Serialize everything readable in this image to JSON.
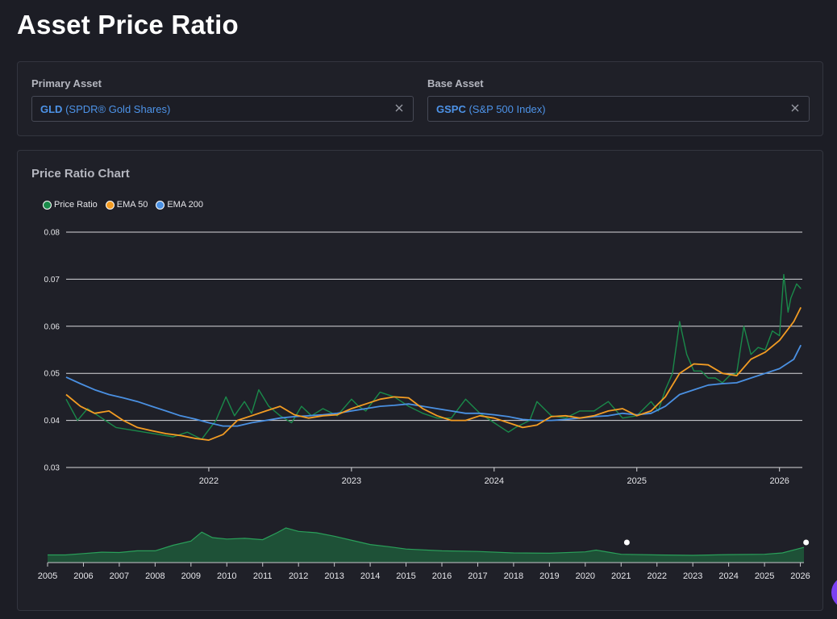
{
  "page": {
    "title": "Asset Price Ratio"
  },
  "selectors": {
    "primary": {
      "label": "Primary Asset",
      "symbol": "GLD",
      "name": "(SPDR® Gold Shares)"
    },
    "base": {
      "label": "Base Asset",
      "symbol": "GSPC",
      "name": "(S&P 500 Index)"
    }
  },
  "chart_card": {
    "title": "Price Ratio Chart"
  },
  "colors": {
    "price": "#1a8a4a",
    "ema50": "#f39c23",
    "ema200": "#4a90e2",
    "accent": "#4d93e8"
  },
  "chart_data": {
    "type": "line",
    "title": "",
    "y_ticks": [
      "0.03",
      "0.04",
      "0.05",
      "0.06",
      "0.07",
      "0.08"
    ],
    "ylim": [
      0.03,
      0.08
    ],
    "x_ticks": [
      "2022",
      "2023",
      "2024",
      "2025",
      "2026"
    ],
    "xlim": [
      2021.0,
      2026.16
    ],
    "grid": "horizontal",
    "legend_position": "top-left",
    "series": [
      {
        "name": "Price Ratio",
        "x": [
          2021.0,
          2021.08,
          2021.15,
          2021.25,
          2021.35,
          2021.45,
          2021.55,
          2021.65,
          2021.75,
          2021.85,
          2021.95,
          2022.05,
          2022.12,
          2022.18,
          2022.25,
          2022.3,
          2022.35,
          2022.42,
          2022.5,
          2022.58,
          2022.65,
          2022.72,
          2022.8,
          2022.9,
          2023.0,
          2023.05,
          2023.1,
          2023.2,
          2023.3,
          2023.35,
          2023.4,
          2023.5,
          2023.6,
          2023.7,
          2023.8,
          2023.9,
          2024.0,
          2024.1,
          2024.15,
          2024.25,
          2024.3,
          2024.4,
          2024.5,
          2024.6,
          2024.7,
          2024.8,
          2024.9,
          2025.0,
          2025.1,
          2025.15,
          2025.2,
          2025.25,
          2025.3,
          2025.35,
          2025.4,
          2025.45,
          2025.5,
          2025.55,
          2025.6,
          2025.65,
          2025.7,
          2025.75,
          2025.8,
          2025.85,
          2025.9,
          2025.95,
          2026.0,
          2026.03,
          2026.06,
          2026.08,
          2026.12,
          2026.15
        ],
        "values": [
          0.0445,
          0.04,
          0.0425,
          0.0405,
          0.0385,
          0.038,
          0.0375,
          0.037,
          0.0365,
          0.0375,
          0.036,
          0.04,
          0.045,
          0.041,
          0.044,
          0.0415,
          0.0465,
          0.043,
          0.041,
          0.0395,
          0.043,
          0.041,
          0.0425,
          0.041,
          0.0445,
          0.043,
          0.042,
          0.046,
          0.045,
          0.044,
          0.043,
          0.0415,
          0.0405,
          0.0405,
          0.0445,
          0.0415,
          0.0395,
          0.0375,
          0.0385,
          0.04,
          0.044,
          0.041,
          0.0405,
          0.042,
          0.042,
          0.044,
          0.0405,
          0.041,
          0.044,
          0.042,
          0.0465,
          0.05,
          0.061,
          0.054,
          0.0505,
          0.0505,
          0.049,
          0.049,
          0.048,
          0.0495,
          0.05,
          0.06,
          0.054,
          0.0555,
          0.055,
          0.059,
          0.058,
          0.071,
          0.063,
          0.066,
          0.069,
          0.068
        ]
      },
      {
        "name": "EMA 50",
        "x": [
          2021.0,
          2021.1,
          2021.2,
          2021.3,
          2021.4,
          2021.5,
          2021.6,
          2021.7,
          2021.8,
          2021.9,
          2022.0,
          2022.1,
          2022.2,
          2022.3,
          2022.4,
          2022.5,
          2022.6,
          2022.7,
          2022.8,
          2022.9,
          2023.0,
          2023.1,
          2023.2,
          2023.3,
          2023.4,
          2023.5,
          2023.6,
          2023.7,
          2023.8,
          2023.9,
          2024.0,
          2024.1,
          2024.2,
          2024.3,
          2024.4,
          2024.5,
          2024.6,
          2024.7,
          2024.8,
          2024.9,
          2025.0,
          2025.1,
          2025.2,
          2025.3,
          2025.4,
          2025.5,
          2025.6,
          2025.7,
          2025.8,
          2025.9,
          2026.0,
          2026.1,
          2026.15
        ],
        "values": [
          0.0455,
          0.043,
          0.0415,
          0.042,
          0.04,
          0.0385,
          0.0378,
          0.0372,
          0.0368,
          0.0362,
          0.0358,
          0.037,
          0.04,
          0.041,
          0.042,
          0.043,
          0.0412,
          0.0405,
          0.041,
          0.0412,
          0.0425,
          0.0435,
          0.0445,
          0.045,
          0.0448,
          0.0425,
          0.041,
          0.04,
          0.04,
          0.041,
          0.0405,
          0.0395,
          0.0385,
          0.039,
          0.0408,
          0.041,
          0.0405,
          0.041,
          0.042,
          0.0425,
          0.041,
          0.042,
          0.045,
          0.05,
          0.052,
          0.0518,
          0.05,
          0.0495,
          0.053,
          0.0545,
          0.057,
          0.061,
          0.064
        ]
      },
      {
        "name": "EMA 200",
        "x": [
          2021.0,
          2021.1,
          2021.2,
          2021.3,
          2021.4,
          2021.5,
          2021.6,
          2021.7,
          2021.8,
          2021.9,
          2022.0,
          2022.1,
          2022.2,
          2022.3,
          2022.4,
          2022.5,
          2022.6,
          2022.7,
          2022.8,
          2022.9,
          2023.0,
          2023.1,
          2023.2,
          2023.3,
          2023.4,
          2023.5,
          2023.6,
          2023.7,
          2023.8,
          2023.9,
          2024.0,
          2024.1,
          2024.2,
          2024.3,
          2024.4,
          2024.5,
          2024.6,
          2024.7,
          2024.8,
          2024.9,
          2025.0,
          2025.1,
          2025.2,
          2025.3,
          2025.4,
          2025.5,
          2025.6,
          2025.7,
          2025.8,
          2025.9,
          2026.0,
          2026.1,
          2026.15
        ],
        "values": [
          0.0492,
          0.0478,
          0.0465,
          0.0455,
          0.0448,
          0.044,
          0.043,
          0.042,
          0.041,
          0.0403,
          0.0395,
          0.0388,
          0.0388,
          0.0395,
          0.04,
          0.0405,
          0.0408,
          0.041,
          0.0412,
          0.0415,
          0.042,
          0.0425,
          0.043,
          0.0432,
          0.0435,
          0.043,
          0.0425,
          0.042,
          0.0415,
          0.0415,
          0.0412,
          0.0408,
          0.0402,
          0.04,
          0.04,
          0.0402,
          0.0405,
          0.0408,
          0.041,
          0.0415,
          0.0412,
          0.0415,
          0.043,
          0.0455,
          0.0465,
          0.0475,
          0.0478,
          0.048,
          0.049,
          0.05,
          0.051,
          0.053,
          0.056
        ]
      }
    ],
    "navigator": {
      "x_ticks": [
        "2005",
        "2006",
        "2007",
        "2008",
        "2009",
        "2010",
        "2011",
        "2012",
        "2013",
        "2014",
        "2015",
        "2016",
        "2017",
        "2018",
        "2019",
        "2020",
        "2021",
        "2022",
        "2023",
        "2024",
        "2025",
        "2026"
      ],
      "xlim": [
        2005.0,
        2026.1
      ],
      "x": [
        2005.0,
        2005.5,
        2006.0,
        2006.5,
        2007.0,
        2007.5,
        2008.0,
        2008.5,
        2009.0,
        2009.3,
        2009.6,
        2010.0,
        2010.5,
        2011.0,
        2011.4,
        2011.65,
        2012.0,
        2012.5,
        2013.0,
        2013.5,
        2014.0,
        2014.5,
        2015.0,
        2016.0,
        2017.0,
        2018.0,
        2019.0,
        2020.0,
        2020.3,
        2021.0,
        2022.0,
        2023.0,
        2024.0,
        2025.0,
        2025.5,
        2026.1
      ],
      "values": [
        0.22,
        0.22,
        0.26,
        0.3,
        0.29,
        0.34,
        0.34,
        0.5,
        0.62,
        0.88,
        0.72,
        0.68,
        0.7,
        0.66,
        0.86,
        1.0,
        0.9,
        0.86,
        0.76,
        0.64,
        0.52,
        0.46,
        0.39,
        0.34,
        0.32,
        0.28,
        0.27,
        0.31,
        0.36,
        0.24,
        0.22,
        0.21,
        0.23,
        0.24,
        0.28,
        0.44
      ],
      "range": [
        2021.16,
        2026.16
      ]
    }
  }
}
